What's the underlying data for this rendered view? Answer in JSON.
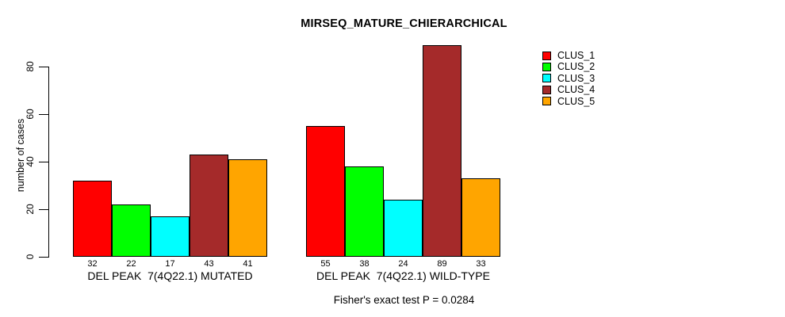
{
  "chart_data": {
    "type": "bar",
    "title": "MIRSEQ_MATURE_CHIERARCHICAL",
    "ylabel": "number of cases",
    "xlabel": "",
    "caption": "Fisher's exact test P = 0.0284",
    "yticks": [
      0,
      20,
      40,
      60,
      80
    ],
    "ylim": [
      0,
      93
    ],
    "grid": false,
    "legend_position": "right-outside",
    "bar_border_color": "#000000",
    "show_value_labels": true,
    "categories": [
      "DEL PEAK  7(4Q22.1) MUTATED",
      "DEL PEAK  7(4Q22.1) WILD-TYPE"
    ],
    "series": [
      {
        "name": "CLUS_1",
        "color": "#FF0000",
        "values": [
          32,
          55
        ]
      },
      {
        "name": "CLUS_2",
        "color": "#00FF00",
        "values": [
          22,
          38
        ]
      },
      {
        "name": "CLUS_3",
        "color": "#00FFFF",
        "values": [
          17,
          24
        ]
      },
      {
        "name": "CLUS_4",
        "color": "#A52A2A",
        "values": [
          43,
          89
        ]
      },
      {
        "name": "CLUS_5",
        "color": "#FFA500",
        "values": [
          41,
          33
        ]
      }
    ]
  }
}
